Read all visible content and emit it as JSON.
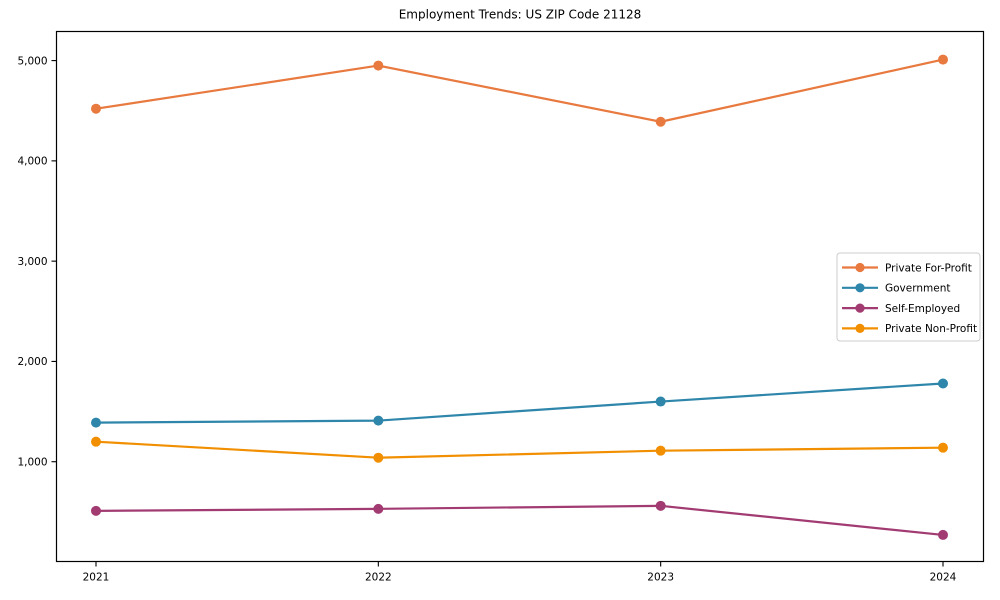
{
  "figure": {
    "background": "#ffffff",
    "frame_color": "#000000",
    "text_color": "#000000",
    "legend_border_color": "#cccccc"
  },
  "chart_data": {
    "type": "line",
    "title": "Employment Trends: US ZIP Code 21128",
    "xlabel": "",
    "ylabel": "",
    "grid": false,
    "legend_position": "center-right",
    "x": [
      "2021",
      "2022",
      "2023",
      "2024"
    ],
    "series": [
      {
        "name": "Private For-Profit",
        "color": "#E8793F",
        "values": [
          4520,
          4950,
          4390,
          5010
        ]
      },
      {
        "name": "Government",
        "color": "#2E86AB",
        "values": [
          1390,
          1410,
          1600,
          1780
        ]
      },
      {
        "name": "Self-Employed",
        "color": "#A23B72",
        "values": [
          510,
          530,
          560,
          270
        ]
      },
      {
        "name": "Private Non-Profit",
        "color": "#F18F01",
        "values": [
          1200,
          1040,
          1110,
          1140
        ]
      }
    ],
    "yticks": [
      1000,
      2000,
      3000,
      4000,
      5000
    ],
    "ytick_labels": [
      "1,000",
      "2,000",
      "3,000",
      "4,000",
      "5,000"
    ],
    "ylim": [
      5,
      5290
    ],
    "marker": "circle",
    "marker_size": 5,
    "line_width": 2.2
  }
}
